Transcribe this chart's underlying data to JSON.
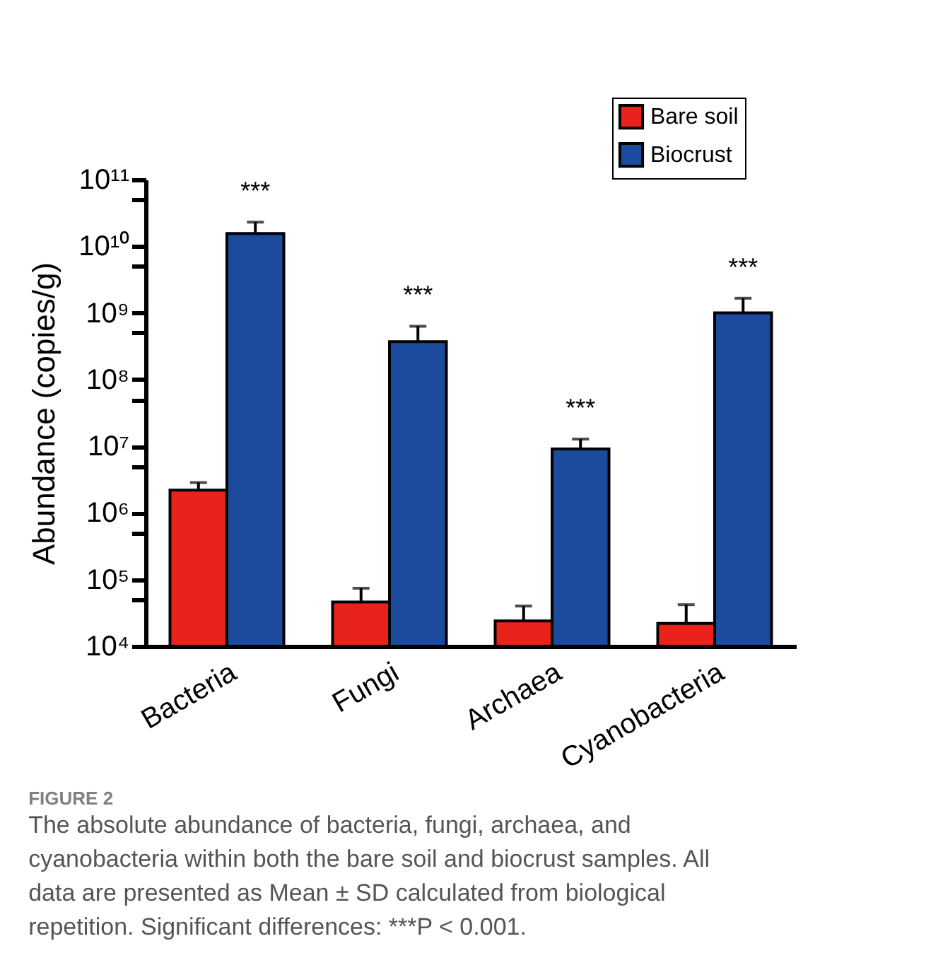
{
  "chart_data": {
    "type": "bar",
    "ylabel": "Abundance (copies/g)",
    "categories": [
      "Bacteria",
      "Fungi",
      "Archaea",
      "Cyanobacteria"
    ],
    "series": [
      {
        "name": "Bare soil",
        "color": "#e8231c",
        "values": [
          2200000,
          46000,
          24000,
          22000
        ],
        "errors": [
          [
            2200000,
            2850000
          ],
          [
            46000,
            74000
          ],
          [
            24000,
            40000
          ],
          [
            22000,
            42000
          ]
        ]
      },
      {
        "name": "Biocrust",
        "color": "#1c4a9c",
        "values": [
          15500000000,
          370000000,
          9100000,
          1000000000
        ],
        "errors": [
          [
            15500000000,
            23000000000
          ],
          [
            370000000,
            630000000
          ],
          [
            9100000,
            12800000
          ],
          [
            1000000000,
            1660000000
          ]
        ]
      }
    ],
    "log": true,
    "ylim": [
      10000,
      100000000000
    ],
    "yticks": [
      {
        "value": 10000,
        "label": "10⁴"
      },
      {
        "value": 50000,
        "label": null
      },
      {
        "value": 100000,
        "label": "10⁵"
      },
      {
        "value": 500000,
        "label": null
      },
      {
        "value": 1000000,
        "label": "10⁶"
      },
      {
        "value": 5000000,
        "label": null
      },
      {
        "value": 10000000,
        "label": "10⁷"
      },
      {
        "value": 50000000,
        "label": null
      },
      {
        "value": 100000000,
        "label": "10⁸"
      },
      {
        "value": 500000000,
        "label": null
      },
      {
        "value": 1000000000,
        "label": "10⁹"
      },
      {
        "value": 5000000000,
        "label": null
      },
      {
        "value": 10000000000,
        "label": "10¹⁰"
      },
      {
        "value": 50000000000,
        "label": null
      },
      {
        "value": 100000000000,
        "label": "10¹¹"
      }
    ],
    "grid": false,
    "legend": "top right",
    "annotations": [
      "***",
      "***",
      "***",
      "***",
      "FIGURE 2",
      "The absolute abundance of bacteria, fungi, archaea, and cyanobacteria within both the bare soil and biocrust samples. All data are presented as Mean ± SD calculated from biological repetition. Significant differences: ***P < 0.001."
    ]
  }
}
